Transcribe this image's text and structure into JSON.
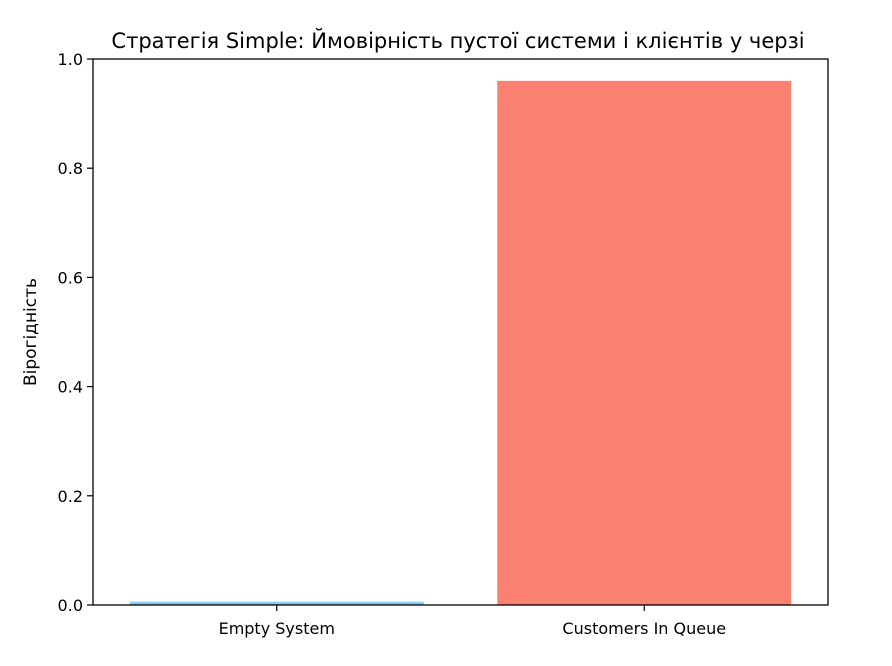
{
  "chart_data": {
    "type": "bar",
    "title": "Стратегія Simple: Ймовірність пустої системи і клієнтів у черзі",
    "xlabel": "",
    "ylabel": "Вірогідність",
    "categories": [
      "Empty System",
      "Customers In Queue"
    ],
    "values": [
      0.006,
      0.96
    ],
    "colors": [
      "#87CEEB",
      "#FA8072"
    ],
    "ylim": [
      0,
      1.0
    ],
    "yticks": [
      0.0,
      0.2,
      0.4,
      0.6,
      0.8,
      1.0
    ],
    "ytick_labels": [
      "0.0",
      "0.2",
      "0.4",
      "0.6",
      "0.8",
      "1.0"
    ],
    "grid": false,
    "legend": "none"
  }
}
